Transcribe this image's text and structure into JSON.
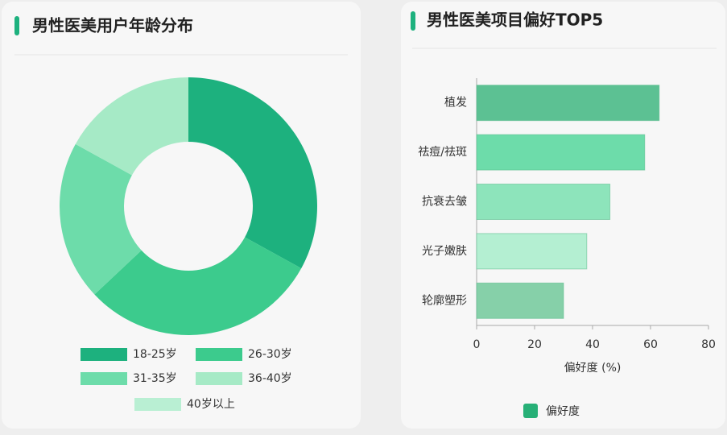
{
  "chart_data": [
    {
      "type": "donut",
      "title": "男性医美用户年龄分布",
      "categories": [
        "18-25岁",
        "26-30岁",
        "31-35岁",
        "36-40岁",
        "40岁以上"
      ],
      "values": [
        33,
        30,
        20,
        17,
        0
      ],
      "colors": [
        "#1db17e",
        "#3ccb8d",
        "#6ddcaa",
        "#a6eac6",
        "#b9efd3"
      ]
    },
    {
      "type": "hbar",
      "title": "男性医美项目偏好TOP5",
      "categories": [
        "植发",
        "祛痘/祛斑",
        "抗衰去皱",
        "光子嫩肤",
        "轮廓塑形"
      ],
      "series": [
        {
          "name": "偏好度",
          "color": "#27b077",
          "values": [
            63,
            58,
            46,
            38,
            30
          ],
          "bar_colors": [
            "#5cc193",
            "#6ddcaa",
            "#8de4bb",
            "#b4efd2",
            "#86d0a9"
          ]
        }
      ],
      "x_label": "偏好度 (%)",
      "xlim": [
        0,
        80
      ],
      "xticks": [
        0,
        20,
        40,
        60,
        80
      ]
    }
  ]
}
